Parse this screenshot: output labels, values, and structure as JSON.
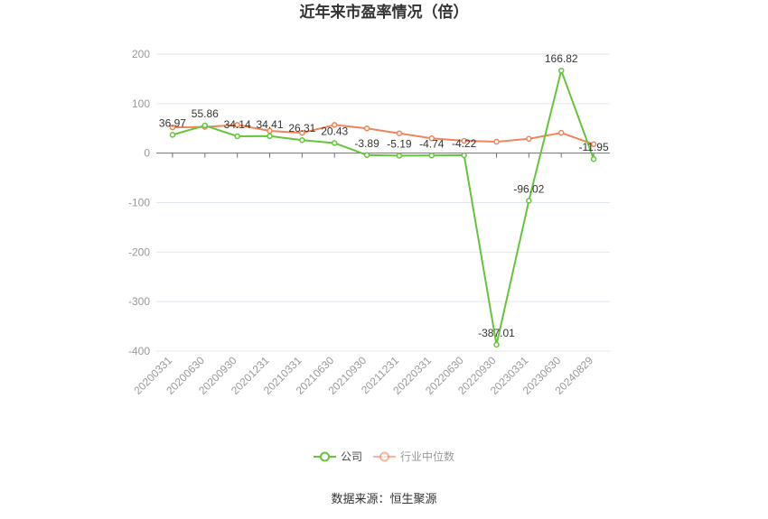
{
  "chart_data": {
    "type": "line",
    "title": "近年来市盈率情况（倍）",
    "categories": [
      "20200331",
      "20200630",
      "20200930",
      "20201231",
      "20210331",
      "20210630",
      "20210930",
      "20211231",
      "20220331",
      "20220630",
      "20220930",
      "20230331",
      "20230630",
      "20240829"
    ],
    "yticks": [
      200,
      100,
      0,
      -100,
      -200,
      -300,
      -400
    ],
    "ylim": [
      -400,
      200
    ],
    "grid": true,
    "legend_position": "bottom",
    "series": [
      {
        "name": "公司",
        "color": "#65c43a",
        "data_labels": true,
        "values": [
          36.97,
          55.86,
          34.14,
          34.41,
          26.31,
          20.43,
          -3.89,
          -5.19,
          -4.74,
          -4.22,
          -387.01,
          -96.02,
          166.82,
          -11.95
        ]
      },
      {
        "name": "行业中位数",
        "color": "#f0845a",
        "data_labels": false,
        "values": [
          52,
          53,
          57,
          45,
          41,
          57,
          50,
          40,
          30,
          25,
          23,
          29,
          41,
          18
        ]
      }
    ]
  },
  "source": "数据来源：恒生聚源"
}
